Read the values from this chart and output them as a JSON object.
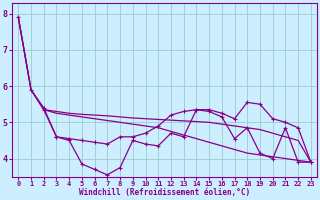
{
  "xlabel": "Windchill (Refroidissement éolien,°C)",
  "xlim": [
    -0.5,
    23.5
  ],
  "ylim": [
    3.5,
    8.3
  ],
  "yticks": [
    4,
    5,
    6,
    7,
    8
  ],
  "xticks": [
    0,
    1,
    2,
    3,
    4,
    5,
    6,
    7,
    8,
    9,
    10,
    11,
    12,
    13,
    14,
    15,
    16,
    17,
    18,
    19,
    20,
    21,
    22,
    23
  ],
  "background_color": "#cceeff",
  "line_color": "#880088",
  "grid_color": "#99cccc",
  "series_with_markers": [
    [
      7.9,
      5.9,
      5.4,
      4.6,
      4.5,
      3.85,
      3.7,
      3.55,
      3.75,
      4.5,
      4.4,
      4.35,
      4.7,
      4.6,
      5.35,
      5.3,
      5.15,
      4.55,
      4.85,
      4.15,
      4.0,
      4.85,
      3.9,
      3.9
    ],
    [
      null,
      null,
      5.35,
      4.6,
      4.55,
      4.5,
      4.45,
      4.4,
      4.6,
      4.6,
      4.7,
      4.9,
      5.2,
      5.3,
      5.35,
      5.35,
      5.25,
      5.1,
      5.55,
      5.5,
      5.1,
      5.0,
      4.85,
      3.9
    ]
  ],
  "series_plain": [
    [
      7.9,
      5.9,
      5.35,
      5.3,
      5.25,
      5.22,
      5.2,
      5.18,
      5.15,
      5.12,
      5.1,
      5.08,
      5.06,
      5.04,
      5.02,
      5.0,
      4.95,
      4.9,
      4.85,
      4.8,
      4.7,
      4.6,
      4.5,
      3.9
    ],
    [
      7.9,
      5.9,
      5.35,
      5.25,
      5.2,
      5.15,
      5.1,
      5.05,
      5.0,
      4.95,
      4.9,
      4.85,
      4.75,
      4.65,
      4.55,
      4.45,
      4.35,
      4.25,
      4.15,
      4.1,
      4.05,
      4.0,
      3.95,
      3.9
    ]
  ]
}
